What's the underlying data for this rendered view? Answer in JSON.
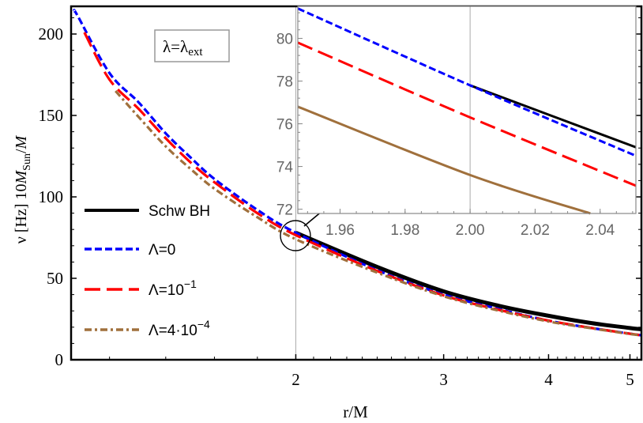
{
  "chart_data": [
    {
      "id": "main",
      "type": "line",
      "xlabel": "r/M",
      "ylabel_parts": [
        "ν [Hz] 10",
        "M",
        "Sun",
        "/",
        "M"
      ],
      "xscale": "log",
      "xlim": [
        1.08,
        5.16
      ],
      "ylim": [
        0,
        217
      ],
      "xticks": [
        2,
        3,
        4,
        5
      ],
      "yticks": [
        0,
        50,
        100,
        150,
        200
      ],
      "gridlines_x": [
        2
      ],
      "annotation": {
        "lhs": "λ=λ",
        "sub": "ext"
      },
      "legend_position": "left",
      "series": [
        {
          "name": "Schw BH",
          "color": "#000000",
          "dash": "solid",
          "x": [
            2,
            2.5,
            3,
            3.5,
            4,
            4.5,
            5,
            5.16
          ],
          "y": [
            78,
            57,
            42,
            33,
            27,
            22.5,
            19.5,
            18.7
          ]
        },
        {
          "name": "Λ=0",
          "color": "#0000ff",
          "dash": "short-dash",
          "x": [
            1.09,
            1.1,
            1.2,
            1.3,
            1.4,
            1.5,
            1.6,
            1.8,
            2,
            2.5,
            3,
            3.5,
            4,
            4.5,
            5,
            5.16
          ],
          "y": [
            214,
            211,
            176,
            158,
            139,
            124,
            111,
            92,
            78,
            55,
            40,
            31,
            24,
            19.5,
            16,
            15
          ]
        },
        {
          "name": "Λ=10",
          "name_sup": "−1",
          "color": "#ff0000",
          "dash": "long-dash",
          "x": [
            1.12,
            1.2,
            1.3,
            1.4,
            1.5,
            1.6,
            1.8,
            2,
            2.5,
            3,
            3.5,
            4,
            4.5,
            5,
            5.16
          ],
          "y": [
            201,
            172,
            154,
            136,
            121,
            109,
            90,
            76.5,
            54.5,
            39.5,
            30.5,
            24,
            19.5,
            16,
            15
          ]
        },
        {
          "name": "Λ=4·10",
          "name_sup": "−4",
          "color": "#a0703c",
          "dash": "dot-dash",
          "x": [
            1.22,
            1.3,
            1.4,
            1.5,
            1.6,
            1.8,
            2,
            2.5,
            3,
            3.5,
            4,
            4.5,
            5,
            5.16
          ],
          "y": [
            165,
            149,
            131,
            117,
            105,
            87.5,
            74,
            53.5,
            39,
            30,
            23.5,
            19.3,
            15.8,
            15
          ]
        }
      ]
    },
    {
      "id": "inset",
      "type": "line",
      "xlim": [
        1.947,
        2.051
      ],
      "ylim": [
        71.8,
        81.5
      ],
      "xticks": [
        1.96,
        1.98,
        2.0,
        2.02,
        2.04
      ],
      "xtick_labels": [
        "1.96",
        "1.98",
        "2.00",
        "2.02",
        "2.04"
      ],
      "yticks": [
        72,
        74,
        76,
        78,
        80
      ],
      "gridlines_x": [
        2.0
      ],
      "series": [
        {
          "color": "#000000",
          "dash": "solid",
          "x": [
            2.0,
            2.051
          ],
          "y": [
            77.8,
            74.9
          ]
        },
        {
          "color": "#0000ff",
          "dash": "short-dash",
          "x": [
            1.947,
            2.0,
            2.051
          ],
          "y": [
            81.4,
            77.8,
            74.5
          ]
        },
        {
          "color": "#ff0000",
          "dash": "long-dash",
          "x": [
            1.947,
            2.0,
            2.051
          ],
          "y": [
            79.8,
            76.3,
            73.1
          ]
        },
        {
          "color": "#a0703c",
          "dash": "solid",
          "x": [
            1.947,
            2.0,
            2.037
          ],
          "y": [
            76.8,
            73.6,
            71.8
          ]
        }
      ]
    }
  ]
}
